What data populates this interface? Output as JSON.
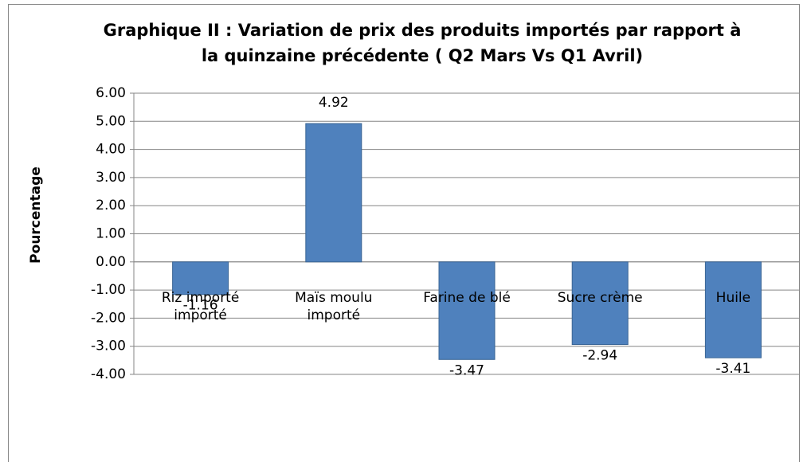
{
  "chart_data": {
    "type": "bar",
    "title": "Graphique II : Variation de prix des produits importés  par rapport à la quinzaine précédente ( Q2 Mars Vs Q1 Avril)",
    "y_label": "Pourcentage",
    "categories": [
      "Riz importé importé",
      "Maïs moulu importé",
      "Farine de blé",
      "Sucre crème",
      "Huile"
    ],
    "values": [
      -1.16,
      4.92,
      -3.47,
      -2.94,
      -3.41
    ],
    "color": "#4f81bd",
    "ylim": [
      -4,
      6
    ],
    "yticks": [
      {
        "value": 6,
        "label": "6.00"
      },
      {
        "value": 5,
        "label": "5.00"
      },
      {
        "value": 4,
        "label": "4.00"
      },
      {
        "value": 3,
        "label": "3.00"
      },
      {
        "value": 2,
        "label": "2.00"
      },
      {
        "value": 1,
        "label": "1.00"
      },
      {
        "value": 0,
        "label": "0.00"
      },
      {
        "value": -1,
        "label": "-1.00"
      },
      {
        "value": -2,
        "label": "-2.00"
      },
      {
        "value": -3,
        "label": "-3.00"
      },
      {
        "value": -4,
        "label": "-4.00"
      }
    ],
    "grid": true
  }
}
